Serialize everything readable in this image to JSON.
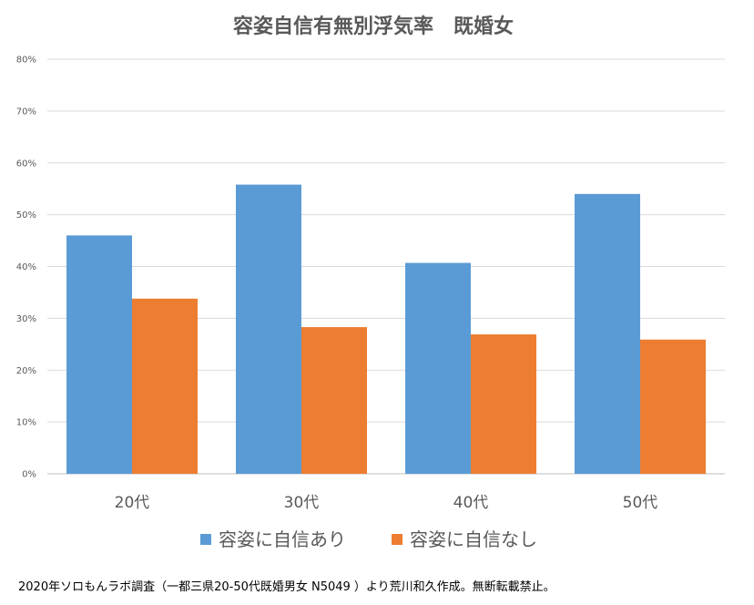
{
  "chart_data": {
    "type": "bar",
    "title": "容姿自信有無別浮気率　既婚女",
    "categories": [
      "20代",
      "30代",
      "40代",
      "50代"
    ],
    "series": [
      {
        "name": "容姿に自信あり",
        "color": "#5b9bd5",
        "values": [
          46,
          55.8,
          40.7,
          54
        ]
      },
      {
        "name": "容姿に自信なし",
        "color": "#ed7d31",
        "values": [
          33.8,
          28.3,
          26.9,
          25.9
        ]
      }
    ],
    "yticks": [
      "0%",
      "10%",
      "20%",
      "30%",
      "40%",
      "50%",
      "60%",
      "70%",
      "80%"
    ],
    "ylim": [
      0,
      80
    ],
    "grid": true,
    "legend_position": "bottom"
  },
  "footnote": "2020年ソロもんラボ調査（一都三県20-50代既婚男女 N5049 ）より荒川和久作成。無断転載禁止。"
}
